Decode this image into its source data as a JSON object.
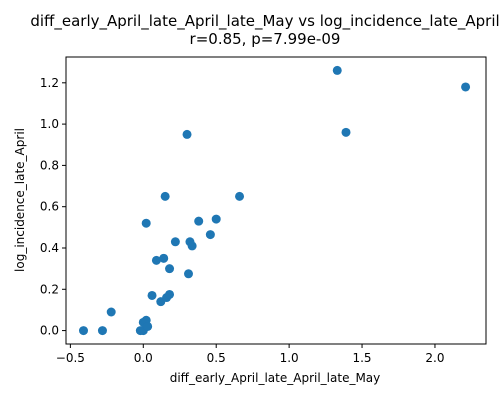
{
  "chart_data": {
    "type": "scatter",
    "title": "diff_early_April_late_April_late_May vs log_incidence_late_April",
    "subtitle": "r=0.85, p=7.99e-09",
    "xlabel": "diff_early_April_late_April_late_May",
    "ylabel": "log_incidence_late_April",
    "xlim": [
      -0.53,
      2.35
    ],
    "ylim": [
      -0.065,
      1.325
    ],
    "x_ticks": [
      {
        "value": -0.5,
        "label": "−0.5"
      },
      {
        "value": 0.0,
        "label": "0.0"
      },
      {
        "value": 0.5,
        "label": "0.5"
      },
      {
        "value": 1.0,
        "label": "1.0"
      },
      {
        "value": 1.5,
        "label": "1.5"
      },
      {
        "value": 2.0,
        "label": "2.0"
      }
    ],
    "y_ticks": [
      {
        "value": 0.0,
        "label": "0.0"
      },
      {
        "value": 0.2,
        "label": "0.2"
      },
      {
        "value": 0.4,
        "label": "0.4"
      },
      {
        "value": 0.6,
        "label": "0.6"
      },
      {
        "value": 0.8,
        "label": "0.8"
      },
      {
        "value": 1.0,
        "label": "1.0"
      },
      {
        "value": 1.2,
        "label": "1.2"
      }
    ],
    "grid": false,
    "marker_color": "#1f77b4",
    "points": [
      {
        "x": -0.41,
        "y": 0.0
      },
      {
        "x": -0.28,
        "y": 0.0
      },
      {
        "x": -0.22,
        "y": 0.09
      },
      {
        "x": -0.02,
        "y": 0.0
      },
      {
        "x": 0.0,
        "y": 0.0
      },
      {
        "x": 0.0,
        "y": 0.04
      },
      {
        "x": 0.02,
        "y": 0.05
      },
      {
        "x": 0.03,
        "y": 0.02
      },
      {
        "x": 0.02,
        "y": 0.52
      },
      {
        "x": 0.06,
        "y": 0.17
      },
      {
        "x": 0.09,
        "y": 0.34
      },
      {
        "x": 0.12,
        "y": 0.14
      },
      {
        "x": 0.14,
        "y": 0.35
      },
      {
        "x": 0.15,
        "y": 0.65
      },
      {
        "x": 0.16,
        "y": 0.16
      },
      {
        "x": 0.18,
        "y": 0.175
      },
      {
        "x": 0.18,
        "y": 0.3
      },
      {
        "x": 0.22,
        "y": 0.43
      },
      {
        "x": 0.3,
        "y": 0.95
      },
      {
        "x": 0.31,
        "y": 0.275
      },
      {
        "x": 0.32,
        "y": 0.43
      },
      {
        "x": 0.335,
        "y": 0.41
      },
      {
        "x": 0.38,
        "y": 0.53
      },
      {
        "x": 0.46,
        "y": 0.465
      },
      {
        "x": 0.5,
        "y": 0.54
      },
      {
        "x": 0.66,
        "y": 0.65
      },
      {
        "x": 1.33,
        "y": 1.26
      },
      {
        "x": 1.39,
        "y": 0.96
      },
      {
        "x": 2.21,
        "y": 1.18
      }
    ]
  }
}
